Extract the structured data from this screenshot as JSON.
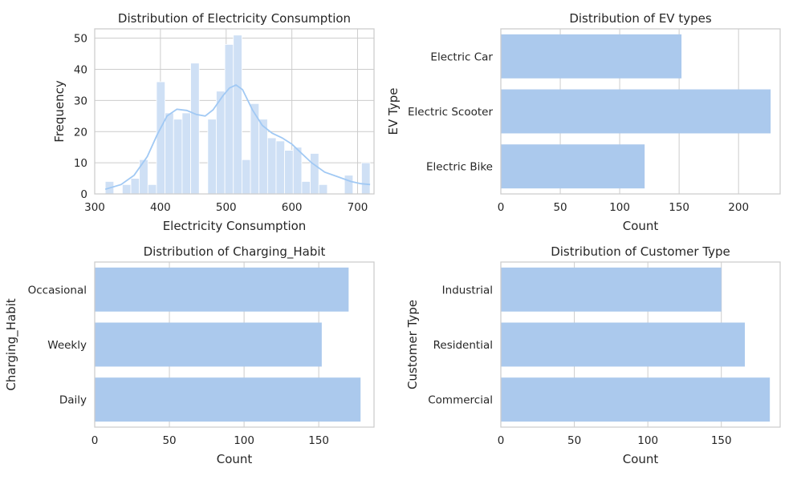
{
  "colors": {
    "bar": "#abc9ed",
    "hist": "#cfe0f5",
    "kde": "#a1c9f4",
    "grid": "#cccccc",
    "text": "#262626"
  },
  "chart_data": [
    {
      "type": "bar",
      "subtype": "histogram",
      "title": "Distribution of Electricity Consumption",
      "xlabel": "Electricity Consumption",
      "ylabel": "Frequency",
      "xlim": [
        300,
        725
      ],
      "ylim": [
        0,
        53
      ],
      "xticks": [
        300,
        400,
        500,
        600,
        700
      ],
      "yticks": [
        0,
        10,
        20,
        30,
        40,
        50
      ],
      "bins": [
        {
          "x0": 316,
          "x1": 329,
          "count": 4
        },
        {
          "x0": 329,
          "x1": 342,
          "count": 0
        },
        {
          "x0": 342,
          "x1": 355,
          "count": 3
        },
        {
          "x0": 355,
          "x1": 368,
          "count": 5
        },
        {
          "x0": 368,
          "x1": 381,
          "count": 11
        },
        {
          "x0": 381,
          "x1": 394,
          "count": 3
        },
        {
          "x0": 394,
          "x1": 407,
          "count": 36
        },
        {
          "x0": 407,
          "x1": 420,
          "count": 26
        },
        {
          "x0": 420,
          "x1": 433,
          "count": 24
        },
        {
          "x0": 433,
          "x1": 446,
          "count": 26
        },
        {
          "x0": 446,
          "x1": 459,
          "count": 42
        },
        {
          "x0": 459,
          "x1": 472,
          "count": 0
        },
        {
          "x0": 472,
          "x1": 485,
          "count": 24
        },
        {
          "x0": 485,
          "x1": 498,
          "count": 33
        },
        {
          "x0": 498,
          "x1": 511,
          "count": 48
        },
        {
          "x0": 511,
          "x1": 524,
          "count": 51
        },
        {
          "x0": 524,
          "x1": 537,
          "count": 11
        },
        {
          "x0": 537,
          "x1": 550,
          "count": 29
        },
        {
          "x0": 550,
          "x1": 563,
          "count": 24
        },
        {
          "x0": 563,
          "x1": 576,
          "count": 18
        },
        {
          "x0": 576,
          "x1": 589,
          "count": 17
        },
        {
          "x0": 589,
          "x1": 602,
          "count": 14
        },
        {
          "x0": 602,
          "x1": 615,
          "count": 15
        },
        {
          "x0": 615,
          "x1": 628,
          "count": 4
        },
        {
          "x0": 628,
          "x1": 641,
          "count": 13
        },
        {
          "x0": 641,
          "x1": 654,
          "count": 3
        },
        {
          "x0": 654,
          "x1": 667,
          "count": 0
        },
        {
          "x0": 667,
          "x1": 680,
          "count": 0
        },
        {
          "x0": 680,
          "x1": 693,
          "count": 6
        },
        {
          "x0": 693,
          "x1": 706,
          "count": 0
        },
        {
          "x0": 706,
          "x1": 719,
          "count": 10
        }
      ],
      "kde": [
        [
          316,
          1.5
        ],
        [
          340,
          3
        ],
        [
          360,
          6
        ],
        [
          380,
          12
        ],
        [
          395,
          19
        ],
        [
          410,
          25
        ],
        [
          425,
          27.2
        ],
        [
          440,
          26.8
        ],
        [
          455,
          25.5
        ],
        [
          468,
          25
        ],
        [
          480,
          27
        ],
        [
          495,
          31.5
        ],
        [
          505,
          34
        ],
        [
          515,
          35
        ],
        [
          525,
          33.5
        ],
        [
          540,
          27
        ],
        [
          555,
          22
        ],
        [
          570,
          19.5
        ],
        [
          585,
          18
        ],
        [
          600,
          16
        ],
        [
          615,
          13
        ],
        [
          630,
          10
        ],
        [
          650,
          7
        ],
        [
          670,
          5.5
        ],
        [
          690,
          4
        ],
        [
          705,
          3.3
        ],
        [
          719,
          3
        ]
      ]
    },
    {
      "type": "bar",
      "orientation": "horizontal",
      "title": "Distribution of EV types",
      "xlabel": "Count",
      "ylabel": "EV Type",
      "xlim": [
        0,
        235
      ],
      "xticks": [
        0,
        50,
        100,
        150,
        200
      ],
      "categories": [
        "Electric Car",
        "Electric Scooter",
        "Electric Bike"
      ],
      "values": [
        152,
        227,
        121
      ]
    },
    {
      "type": "bar",
      "orientation": "horizontal",
      "title": "Distribution of Charging_Habit",
      "xlabel": "Count",
      "ylabel": "Charging_Habit",
      "xlim": [
        0,
        187
      ],
      "xticks": [
        0,
        50,
        100,
        150
      ],
      "categories": [
        "Occasional",
        "Weekly",
        "Daily"
      ],
      "values": [
        170,
        152,
        178
      ]
    },
    {
      "type": "bar",
      "orientation": "horizontal",
      "title": "Distribution of Customer Type",
      "xlabel": "Count",
      "ylabel": "Customer Type",
      "xlim": [
        0,
        190
      ],
      "xticks": [
        0,
        50,
        100,
        150
      ],
      "categories": [
        "Industrial",
        "Residential",
        "Commercial"
      ],
      "values": [
        150,
        166,
        183
      ]
    }
  ]
}
